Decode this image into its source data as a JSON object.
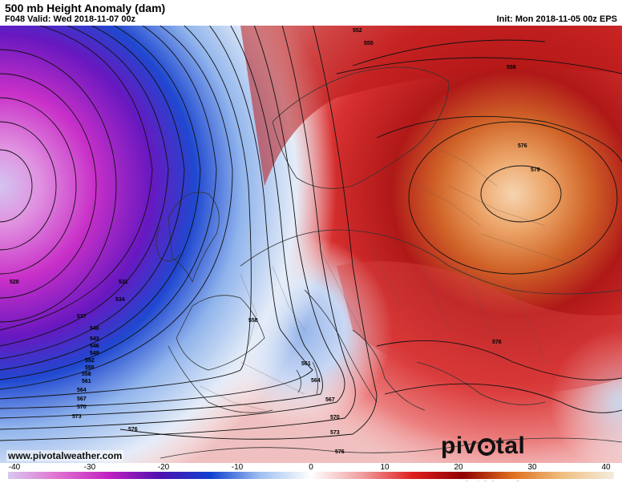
{
  "header": {
    "title": "500 mb Height Anomaly (dam)",
    "valid": "F048 Valid: Wed 2018-11-07 00z",
    "init": "Init: Mon 2018-11-05 00z EPS"
  },
  "footer": {
    "website": "www.pivotalweather.com",
    "logo_part1": "piv",
    "logo_part2": "tal weather"
  },
  "colorbar": {
    "ticks": [
      "-40",
      "-30",
      "-20",
      "-10",
      "0",
      "10",
      "20",
      "30",
      "40"
    ],
    "range": [
      -40,
      40
    ],
    "stops": [
      "#d8c8f0",
      "#e070d0",
      "#c020c0",
      "#5010b0",
      "#1040d0",
      "#a0c0f0",
      "#ffffff",
      "#f0a0a0",
      "#e02020",
      "#900000",
      "#e07020",
      "#f0c080",
      "#f4ece0"
    ]
  },
  "contours": {
    "low_center_labels": [
      "528",
      "531",
      "534",
      "537",
      "540",
      "543",
      "546",
      "549",
      "552",
      "555",
      "558",
      "561",
      "564",
      "567",
      "570",
      "573",
      "576"
    ],
    "interior_labels": [
      "558",
      "561",
      "564",
      "567",
      "570",
      "573",
      "576",
      "576",
      "579",
      "576",
      "558",
      "552",
      "555"
    ]
  },
  "anomaly_colors": {
    "strong_negative": "#6a18c8",
    "negative": "#3c6ee0",
    "weak_negative": "#c8dcf4",
    "neutral": "#ffffff",
    "positive": "#e04848",
    "strong_positive": "#a81010",
    "peak_positive": "#f0c49a"
  }
}
